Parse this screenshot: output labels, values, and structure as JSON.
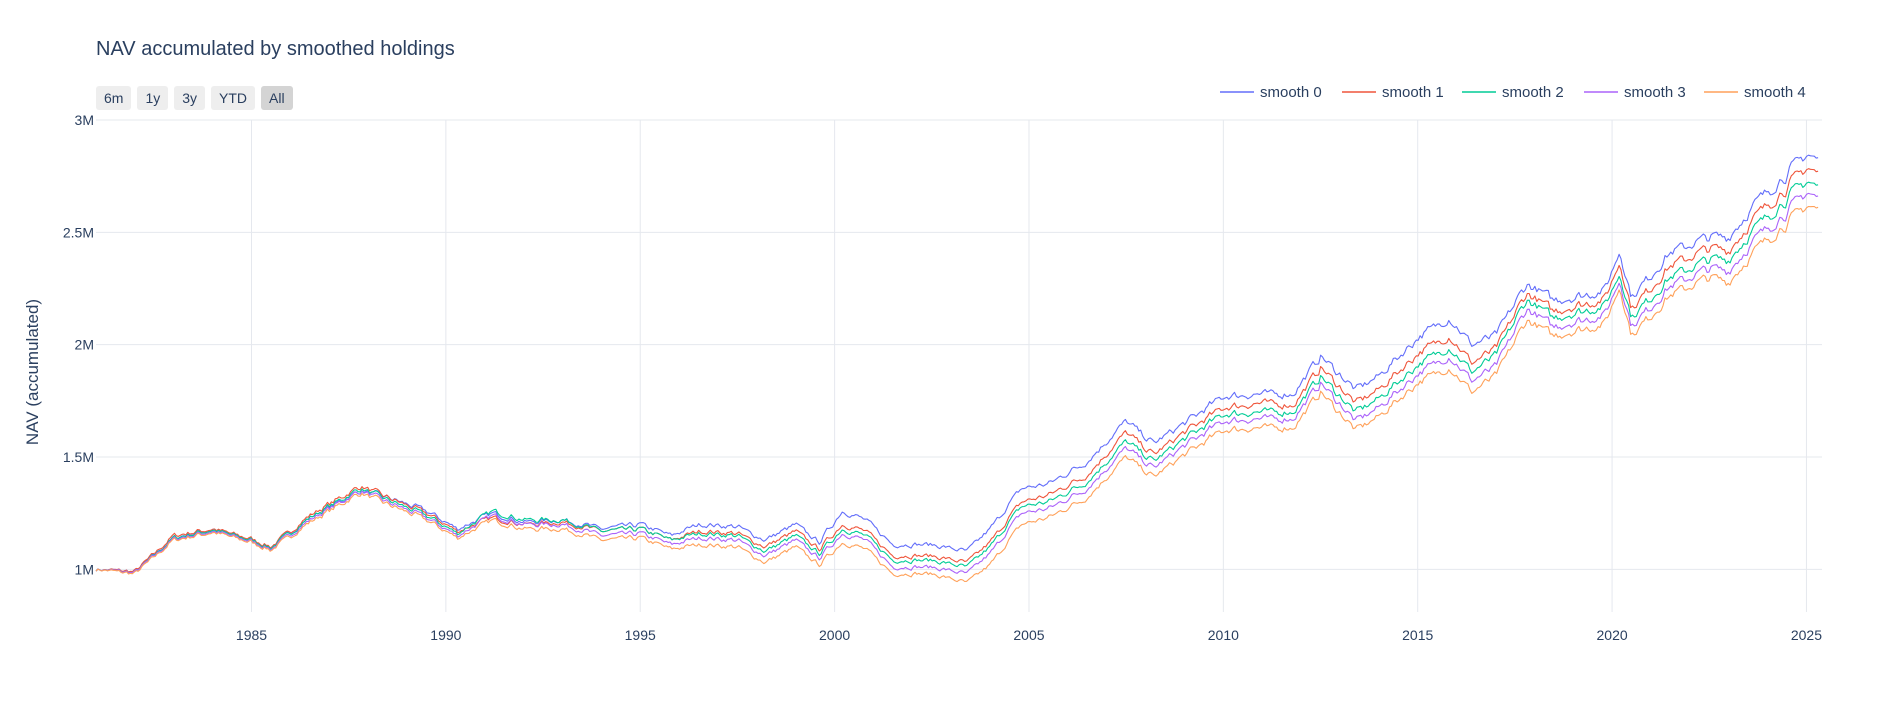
{
  "chart": {
    "title": "NAV accumulated by smoothed holdings",
    "ylabel": "NAV (accumulated)",
    "range_buttons": [
      {
        "label": "6m",
        "active": false
      },
      {
        "label": "1y",
        "active": false
      },
      {
        "label": "3y",
        "active": false
      },
      {
        "label": "YTD",
        "active": false
      },
      {
        "label": "All",
        "active": true
      }
    ]
  },
  "chart_data": {
    "type": "line",
    "title": "NAV accumulated by smoothed holdings",
    "xlabel": "",
    "ylabel": "NAV (accumulated)",
    "xlim": [
      1981.0,
      2025.4
    ],
    "ylim": [
      810000,
      3000000
    ],
    "x_ticks": [
      1985,
      1990,
      1995,
      2000,
      2005,
      2010,
      2015,
      2020,
      2025
    ],
    "y_ticks": [
      {
        "value": 1000000,
        "label": "1M"
      },
      {
        "value": 1500000,
        "label": "1.5M"
      },
      {
        "value": 2000000,
        "label": "2M"
      },
      {
        "value": 2500000,
        "label": "2.5M"
      },
      {
        "value": 3000000,
        "label": "3M"
      }
    ],
    "grid": true,
    "legend_position": "top-right",
    "x": [
      1981.0,
      1982.0,
      1983.0,
      1984.0,
      1985.0,
      1985.5,
      1986.5,
      1987.8,
      1988.5,
      1989.5,
      1990.3,
      1991.2,
      1992.0,
      1993.0,
      1994.0,
      1995.0,
      1995.8,
      1996.5,
      1997.5,
      1998.2,
      1999.0,
      1999.6,
      2000.2,
      2000.8,
      2001.5,
      2002.5,
      2003.4,
      2004.0,
      2004.8,
      2005.5,
      2006.5,
      2007.5,
      2008.2,
      2009.0,
      2010.0,
      2011.0,
      2011.8,
      2012.5,
      2013.4,
      2014.0,
      2015.0,
      2015.8,
      2016.4,
      2017.0,
      2017.8,
      2018.5,
      2019.0,
      2019.8,
      2020.2,
      2020.5,
      2021.5,
      2022.5,
      2023.0,
      2023.8,
      2024.5,
      2025.0,
      2025.3
    ],
    "series": [
      {
        "name": "smooth 0",
        "color": "#636efa",
        "values": [
          1000000,
          990000,
          1140000,
          1180000,
          1130000,
          1100000,
          1230000,
          1350000,
          1320000,
          1260000,
          1180000,
          1250000,
          1210000,
          1220000,
          1180000,
          1200000,
          1150000,
          1200000,
          1190000,
          1130000,
          1200000,
          1120000,
          1260000,
          1220000,
          1110000,
          1110000,
          1080000,
          1180000,
          1360000,
          1380000,
          1480000,
          1660000,
          1560000,
          1650000,
          1770000,
          1780000,
          1780000,
          1950000,
          1800000,
          1860000,
          2030000,
          2120000,
          2000000,
          2040000,
          2270000,
          2200000,
          2210000,
          2240000,
          2420000,
          2210000,
          2410000,
          2480000,
          2480000,
          2650000,
          2760000,
          2850000,
          2820000
        ]
      },
      {
        "name": "smooth 1",
        "color": "#ef553b",
        "values": [
          1000000,
          990000,
          1150000,
          1180000,
          1135000,
          1100000,
          1240000,
          1370000,
          1320000,
          1250000,
          1170000,
          1230000,
          1200000,
          1210000,
          1170000,
          1180000,
          1130000,
          1170000,
          1160000,
          1100000,
          1170000,
          1090000,
          1200000,
          1170000,
          1060000,
          1060000,
          1030000,
          1120000,
          1300000,
          1330000,
          1420000,
          1610000,
          1510000,
          1610000,
          1720000,
          1740000,
          1730000,
          1900000,
          1740000,
          1800000,
          1960000,
          2040000,
          1920000,
          1980000,
          2230000,
          2150000,
          2170000,
          2200000,
          2370000,
          2160000,
          2350000,
          2430000,
          2420000,
          2590000,
          2700000,
          2790000,
          2760000
        ]
      },
      {
        "name": "smooth 2",
        "color": "#00cc96",
        "values": [
          1000000,
          985000,
          1140000,
          1175000,
          1130000,
          1095000,
          1230000,
          1360000,
          1310000,
          1240000,
          1160000,
          1260000,
          1220000,
          1220000,
          1170000,
          1180000,
          1130000,
          1160000,
          1150000,
          1080000,
          1150000,
          1070000,
          1180000,
          1150000,
          1040000,
          1040000,
          1010000,
          1100000,
          1280000,
          1300000,
          1390000,
          1570000,
          1480000,
          1580000,
          1690000,
          1700000,
          1700000,
          1860000,
          1700000,
          1760000,
          1910000,
          1990000,
          1880000,
          1950000,
          2200000,
          2120000,
          2140000,
          2170000,
          2320000,
          2120000,
          2300000,
          2380000,
          2380000,
          2540000,
          2650000,
          2730000,
          2700000
        ]
      },
      {
        "name": "smooth 3",
        "color": "#ab63fa",
        "values": [
          1000000,
          985000,
          1135000,
          1170000,
          1125000,
          1090000,
          1220000,
          1350000,
          1300000,
          1230000,
          1150000,
          1240000,
          1200000,
          1200000,
          1150000,
          1160000,
          1110000,
          1140000,
          1130000,
          1060000,
          1130000,
          1050000,
          1160000,
          1130000,
          1010000,
          1010000,
          980000,
          1070000,
          1250000,
          1270000,
          1360000,
          1540000,
          1450000,
          1550000,
          1660000,
          1670000,
          1670000,
          1830000,
          1660000,
          1720000,
          1870000,
          1950000,
          1840000,
          1900000,
          2160000,
          2080000,
          2100000,
          2130000,
          2290000,
          2080000,
          2260000,
          2340000,
          2330000,
          2490000,
          2590000,
          2680000,
          2650000
        ]
      },
      {
        "name": "smooth 4",
        "color": "#ffa15a",
        "values": [
          1000000,
          980000,
          1130000,
          1165000,
          1120000,
          1085000,
          1210000,
          1340000,
          1290000,
          1220000,
          1140000,
          1220000,
          1180000,
          1180000,
          1130000,
          1140000,
          1090000,
          1110000,
          1100000,
          1030000,
          1100000,
          1020000,
          1120000,
          1090000,
          980000,
          980000,
          940000,
          1020000,
          1200000,
          1230000,
          1320000,
          1500000,
          1410000,
          1510000,
          1620000,
          1630000,
          1630000,
          1790000,
          1620000,
          1680000,
          1830000,
          1900000,
          1790000,
          1860000,
          2110000,
          2040000,
          2060000,
          2090000,
          2260000,
          2040000,
          2220000,
          2300000,
          2280000,
          2440000,
          2540000,
          2620000,
          2600000
        ]
      }
    ]
  }
}
